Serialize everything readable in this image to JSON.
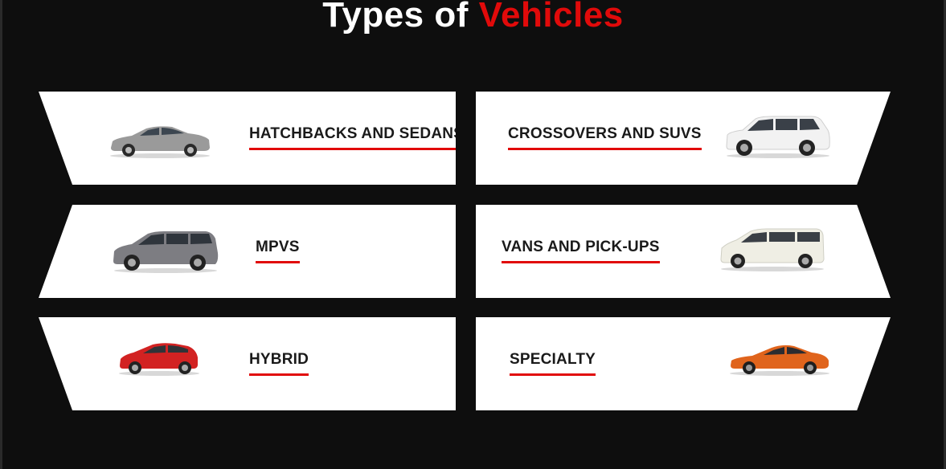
{
  "heading": {
    "prefix": "Types of",
    "accent": "Vehicles"
  },
  "colors": {
    "background": "#0e0e0e",
    "card": "#ffffff",
    "accent": "#e10a0a",
    "text": "#1a1a1a"
  },
  "categories": [
    {
      "label": "HATCHBACKS AND SEDANS",
      "icon": "sedan-car-icon",
      "car_color": "#9a9a9a"
    },
    {
      "label": "CROSSOVERS AND SUVS",
      "icon": "suv-car-icon",
      "car_color": "#f2f2f2"
    },
    {
      "label": "MPVS",
      "icon": "mpv-car-icon",
      "car_color": "#7d7d82"
    },
    {
      "label": "VANS AND PICK-UPS",
      "icon": "van-car-icon",
      "car_color": "#efeee4"
    },
    {
      "label": "HYBRID",
      "icon": "hatchback-car-icon",
      "car_color": "#d22222"
    },
    {
      "label": "SPECIALTY",
      "icon": "sports-car-icon",
      "car_color": "#e0641c"
    }
  ]
}
